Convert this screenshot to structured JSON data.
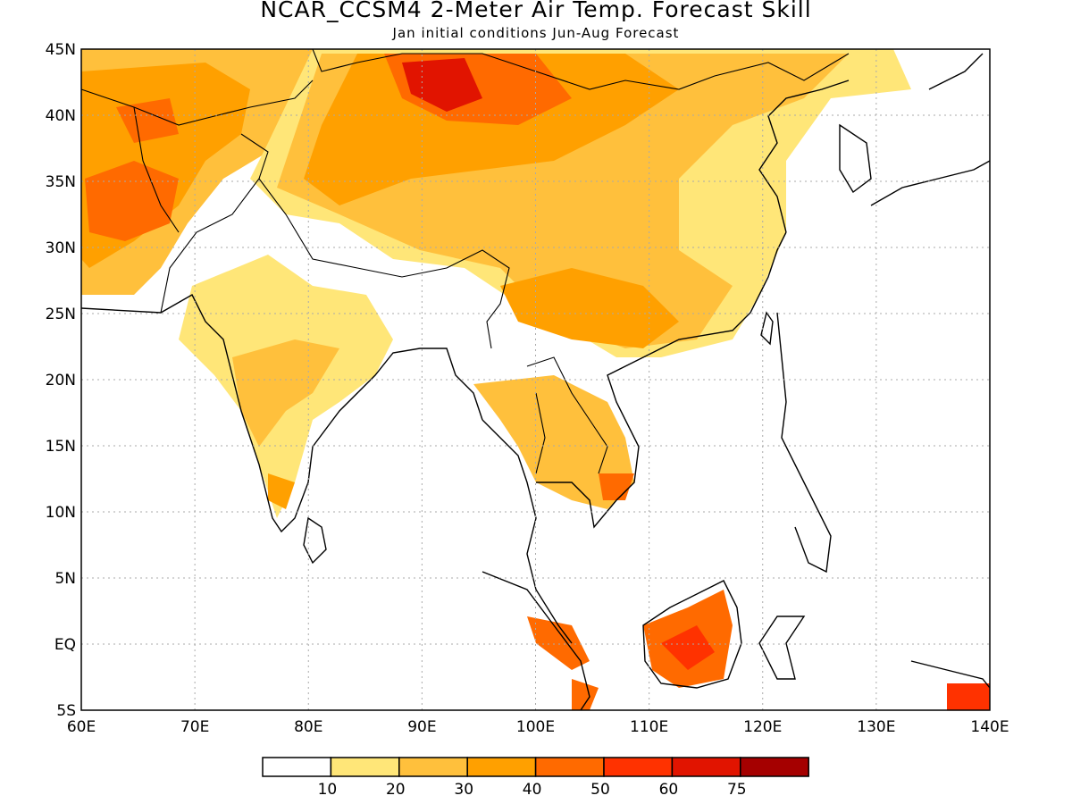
{
  "title": "NCAR_CCSM4 2-Meter Air Temp. Forecast Skill",
  "subtitle": "Jan initial conditions  Jun-Aug Forecast",
  "map": {
    "lon_range": [
      60,
      140
    ],
    "lat_range": [
      -5,
      45
    ],
    "lon_ticks": [
      "60E",
      "70E",
      "80E",
      "90E",
      "100E",
      "110E",
      "120E",
      "130E",
      "140E"
    ],
    "lat_ticks": [
      "5S",
      "EQ",
      "5N",
      "10N",
      "15N",
      "20N",
      "25N",
      "30N",
      "35N",
      "40N",
      "45N"
    ],
    "gridlines": "dotted"
  },
  "legend": {
    "colors": [
      "#ffffff",
      "#ffe678",
      "#ffc03c",
      "#ffa000",
      "#ff6a00",
      "#ff3200",
      "#e11400",
      "#a50000"
    ],
    "labels": [
      "10",
      "20",
      "30",
      "40",
      "50",
      "60",
      "75"
    ]
  },
  "colors": {
    "frame": "#000000",
    "grid": "#aaaaaa",
    "coast": "#000000"
  }
}
